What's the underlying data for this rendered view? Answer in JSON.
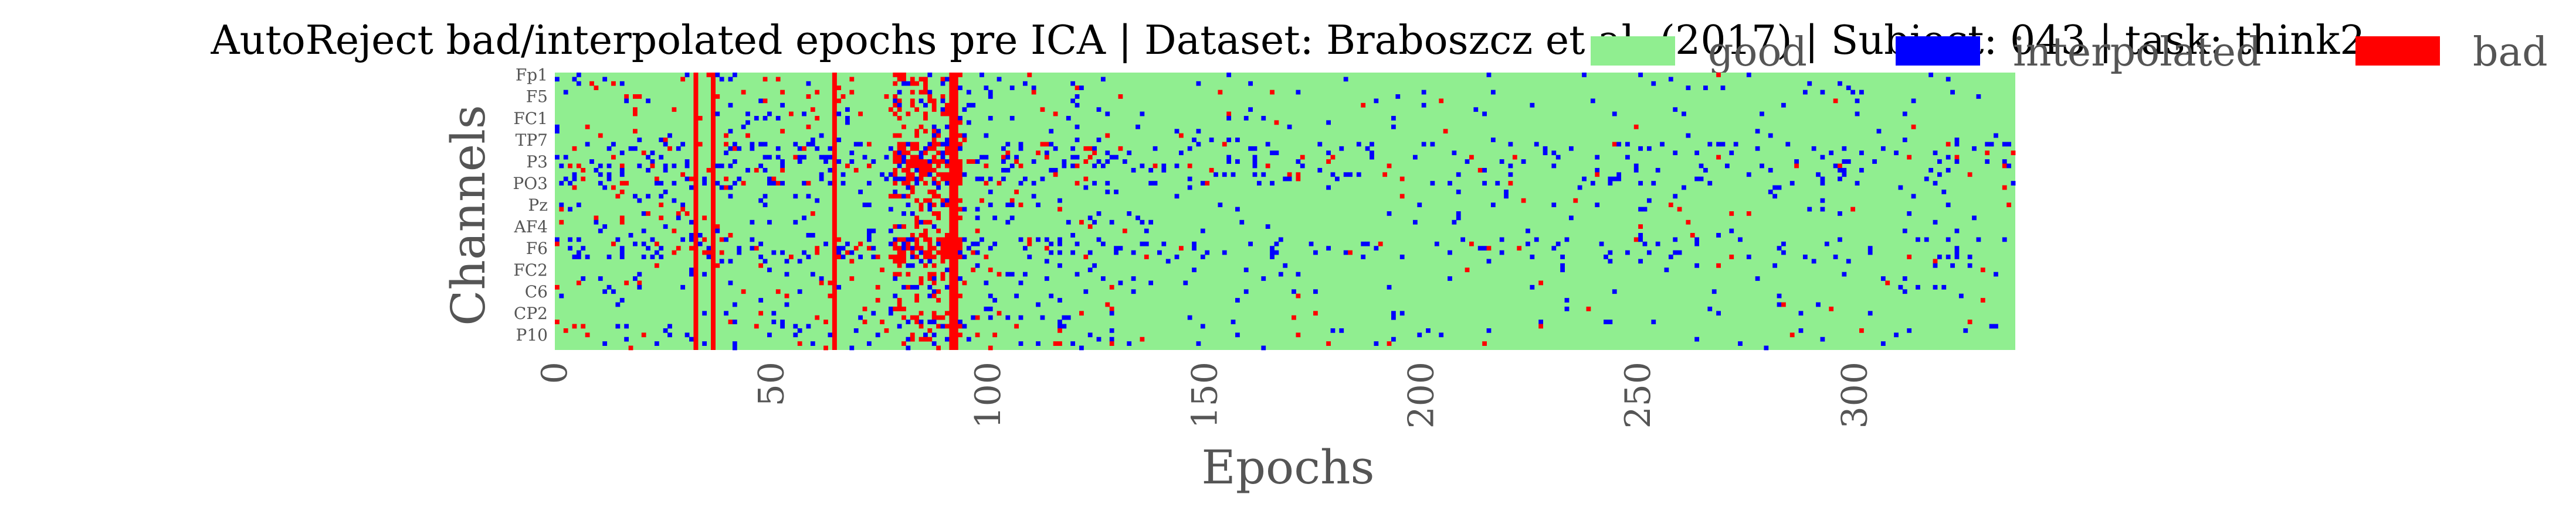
{
  "chart_data": {
    "type": "heatmap",
    "title": "AutoReject bad/interpolated epochs pre ICA | Dataset: Braboszcz et al. (2017) | Subject: 043 | task: think2",
    "xlabel": "Epochs",
    "ylabel": "Channels",
    "n_epochs": 337,
    "n_channels": 64,
    "xlim": [
      0,
      337
    ],
    "x_ticks": [
      0,
      50,
      100,
      150,
      200,
      250,
      300
    ],
    "y_tick_labels": [
      "Fp1",
      "F5",
      "FC1",
      "TP7",
      "P3",
      "PO3",
      "Pz",
      "AF4",
      "F6",
      "FC2",
      "C6",
      "CP2",
      "P10"
    ],
    "legend": {
      "placement": "top-right",
      "entries": [
        {
          "label": "good",
          "color": "#90ee90"
        },
        {
          "label": "interpolated",
          "color": "#0000ff"
        },
        {
          "label": "bad",
          "color": "#ff0000"
        }
      ]
    },
    "colors": {
      "good": "#90ee90",
      "interpolated": "#0000ff",
      "bad": "#ff0000"
    },
    "bad_epochs": [
      32,
      36,
      64,
      91,
      92
    ],
    "dense_bad_ranges": [
      [
        78,
        93
      ]
    ],
    "dense_interpolated_ranges": [
      [
        0,
        130
      ]
    ],
    "sparse_interpolated_ranges": [
      [
        130,
        337
      ]
    ]
  }
}
